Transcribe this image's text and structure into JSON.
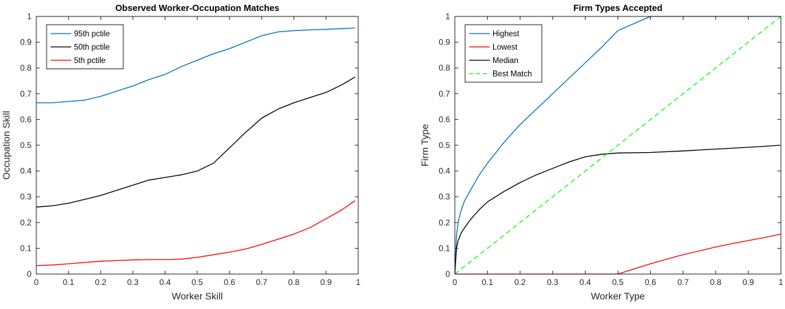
{
  "chart_data": [
    {
      "type": "line",
      "title": "Observed Worker-Occupation Matches",
      "xlabel": "Worker Skill",
      "ylabel": "Occupation Skill",
      "xlim": [
        0,
        1
      ],
      "ylim": [
        0,
        1
      ],
      "xticks": [
        "0",
        "0.1",
        "0.2",
        "0.3",
        "0.4",
        "0.5",
        "0.6",
        "0.7",
        "0.8",
        "0.9",
        "1"
      ],
      "yticks": [
        "0",
        "0.1",
        "0.2",
        "0.3",
        "0.4",
        "0.5",
        "0.6",
        "0.7",
        "0.8",
        "0.9",
        "1"
      ],
      "grid": false,
      "legend_position": "top-left",
      "series": [
        {
          "name": "95th pctile",
          "color": "#0072BD",
          "dash": "solid",
          "x": [
            0,
            0.05,
            0.1,
            0.15,
            0.2,
            0.25,
            0.3,
            0.35,
            0.4,
            0.45,
            0.5,
            0.55,
            0.6,
            0.65,
            0.7,
            0.75,
            0.8,
            0.85,
            0.9,
            0.95,
            0.99
          ],
          "y": [
            0.665,
            0.665,
            0.67,
            0.675,
            0.69,
            0.71,
            0.73,
            0.755,
            0.775,
            0.805,
            0.83,
            0.855,
            0.875,
            0.9,
            0.925,
            0.94,
            0.945,
            0.948,
            0.95,
            0.953,
            0.955
          ]
        },
        {
          "name": "50th pctile",
          "color": "#000000",
          "dash": "solid",
          "x": [
            0,
            0.05,
            0.1,
            0.15,
            0.2,
            0.25,
            0.3,
            0.35,
            0.4,
            0.45,
            0.5,
            0.55,
            0.6,
            0.65,
            0.7,
            0.75,
            0.8,
            0.85,
            0.9,
            0.95,
            0.99
          ],
          "y": [
            0.26,
            0.265,
            0.275,
            0.29,
            0.305,
            0.325,
            0.345,
            0.365,
            0.375,
            0.385,
            0.4,
            0.43,
            0.49,
            0.55,
            0.605,
            0.64,
            0.665,
            0.685,
            0.705,
            0.735,
            0.765
          ]
        },
        {
          "name": "5th pctile",
          "color": "#FF0000",
          "dash": "solid",
          "x": [
            0,
            0.05,
            0.1,
            0.15,
            0.2,
            0.25,
            0.3,
            0.35,
            0.4,
            0.45,
            0.5,
            0.55,
            0.6,
            0.65,
            0.7,
            0.75,
            0.8,
            0.85,
            0.9,
            0.95,
            0.99
          ],
          "y": [
            0.033,
            0.035,
            0.04,
            0.045,
            0.05,
            0.052,
            0.055,
            0.056,
            0.056,
            0.058,
            0.065,
            0.075,
            0.085,
            0.097,
            0.115,
            0.135,
            0.155,
            0.18,
            0.215,
            0.25,
            0.285
          ]
        }
      ]
    },
    {
      "type": "line",
      "title": "Firm Types Accepted",
      "xlabel": "Worker Type",
      "ylabel": "Firm Type",
      "xlim": [
        0,
        1
      ],
      "ylim": [
        0,
        1
      ],
      "xticks": [
        "0",
        "0.1",
        "0.2",
        "0.3",
        "0.4",
        "0.5",
        "0.6",
        "0.7",
        "0.8",
        "0.9",
        "1"
      ],
      "yticks": [
        "0",
        "0.1",
        "0.2",
        "0.3",
        "0.4",
        "0.5",
        "0.6",
        "0.7",
        "0.8",
        "0.9",
        "1"
      ],
      "grid": false,
      "legend_position": "top-left",
      "series": [
        {
          "name": "Highest",
          "color": "#0072BD",
          "dash": "solid",
          "x": [
            0,
            0.005,
            0.01,
            0.02,
            0.03,
            0.05,
            0.075,
            0.1,
            0.15,
            0.2,
            0.25,
            0.3,
            0.35,
            0.4,
            0.45,
            0.5,
            0.6,
            0.7,
            0.8,
            0.9,
            1
          ],
          "y": [
            0,
            0.15,
            0.2,
            0.25,
            0.285,
            0.33,
            0.385,
            0.43,
            0.51,
            0.58,
            0.64,
            0.7,
            0.76,
            0.82,
            0.88,
            0.945,
            1,
            1,
            1,
            1,
            1
          ]
        },
        {
          "name": "Lowest",
          "color": "#FF0000",
          "dash": "solid",
          "x": [
            0,
            0.1,
            0.2,
            0.3,
            0.4,
            0.49,
            0.5,
            0.55,
            0.6,
            0.65,
            0.7,
            0.75,
            0.8,
            0.85,
            0.9,
            0.95,
            1
          ],
          "y": [
            0,
            0,
            0,
            0,
            0,
            0,
            0,
            0.02,
            0.04,
            0.058,
            0.075,
            0.09,
            0.105,
            0.118,
            0.13,
            0.142,
            0.155
          ]
        },
        {
          "name": "Median",
          "color": "#000000",
          "dash": "solid",
          "x": [
            0,
            0.005,
            0.01,
            0.02,
            0.03,
            0.05,
            0.075,
            0.1,
            0.15,
            0.2,
            0.25,
            0.3,
            0.35,
            0.4,
            0.45,
            0.5,
            0.6,
            0.7,
            0.8,
            0.9,
            1
          ],
          "y": [
            0,
            0.1,
            0.13,
            0.16,
            0.18,
            0.215,
            0.25,
            0.28,
            0.32,
            0.355,
            0.385,
            0.41,
            0.435,
            0.455,
            0.465,
            0.47,
            0.472,
            0.478,
            0.485,
            0.492,
            0.5
          ]
        },
        {
          "name": "Best Match",
          "color": "#00FF00",
          "dash": "dashed",
          "x": [
            0,
            1
          ],
          "y": [
            0,
            1
          ]
        }
      ]
    }
  ]
}
